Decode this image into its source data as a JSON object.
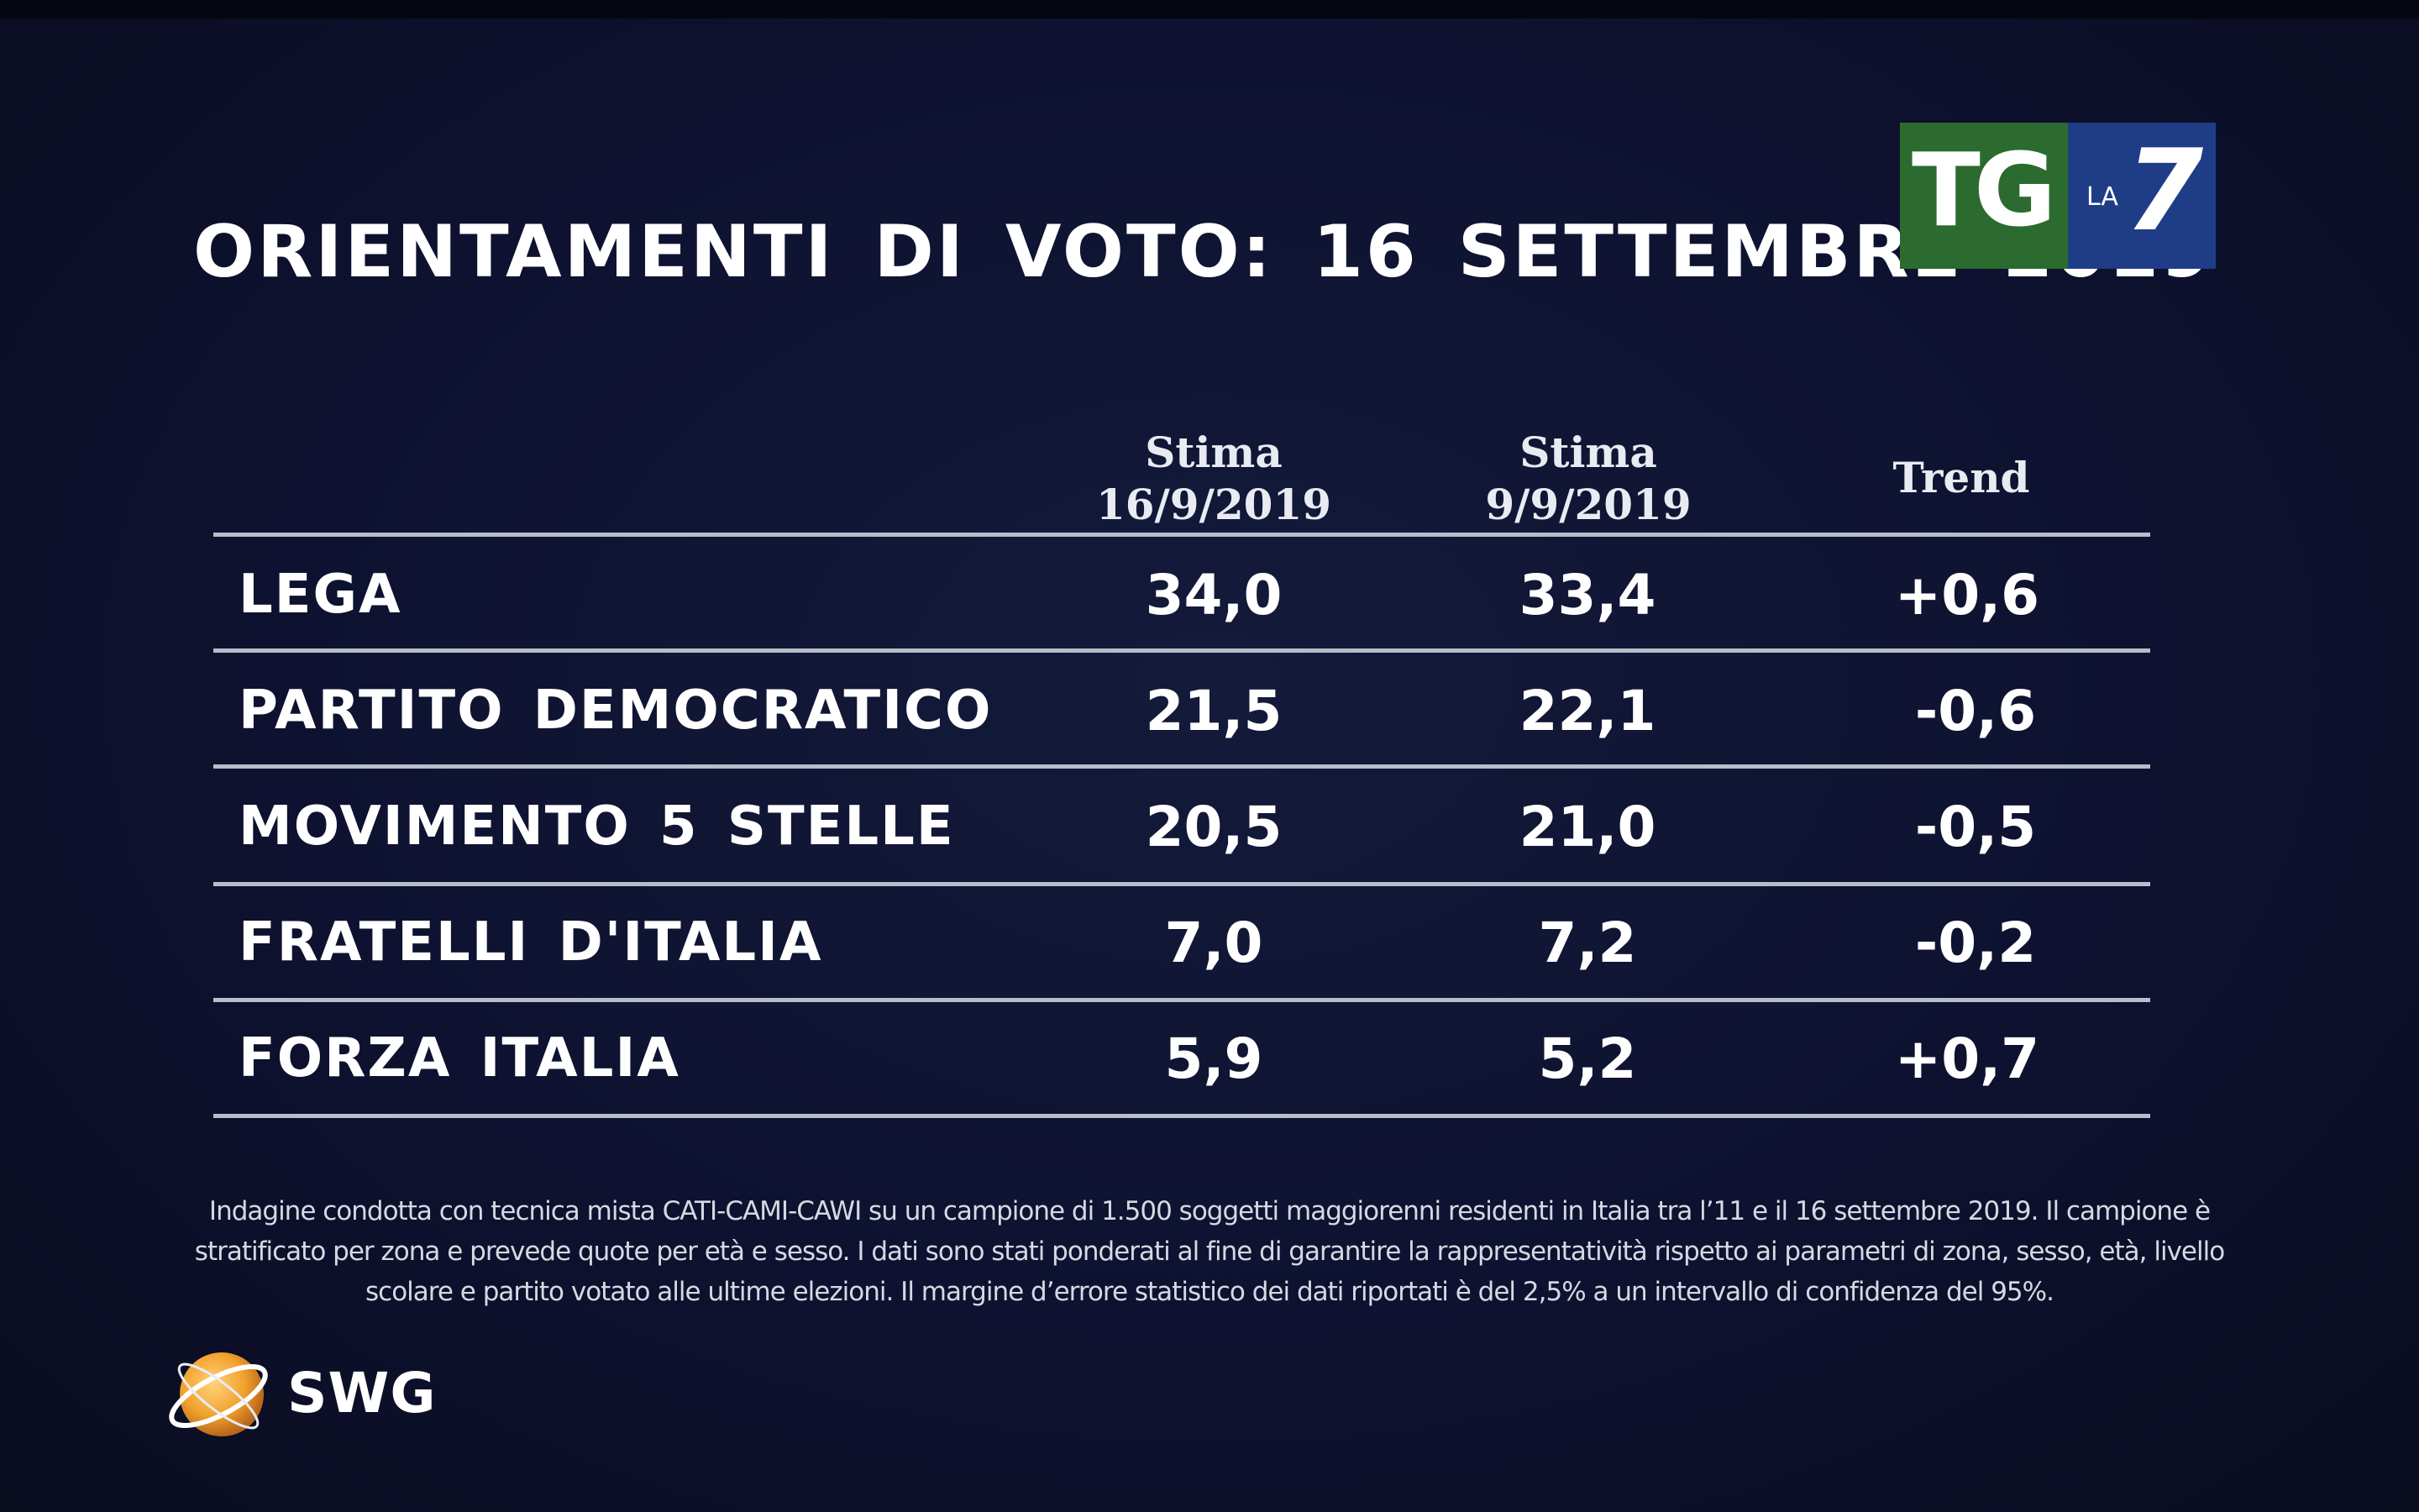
{
  "title": "ORIENTAMENTI DI VOTO: 16 SETTEMBRE 2019",
  "logo": {
    "tg": "TG",
    "la": "LA",
    "seven": "7",
    "green": "#2c6b2f",
    "blue": "#1f3d86"
  },
  "chart_data": {
    "type": "table",
    "title": "ORIENTAMENTI DI VOTO: 16 SETTEMBRE 2019",
    "columns": [
      {
        "line1": "Stima",
        "line2": "16/9/2019"
      },
      {
        "line1": "Stima",
        "line2": "9/9/2019"
      },
      {
        "line1": "Trend",
        "line2": ""
      }
    ],
    "rows": [
      {
        "party": "LEGA",
        "current": "34,0",
        "previous": "33,4",
        "trend": "+0,6"
      },
      {
        "party": "PARTITO DEMOCRATICO",
        "current": "21,5",
        "previous": "22,1",
        "trend": "-0,6"
      },
      {
        "party": "MOVIMENTO 5 STELLE",
        "current": "20,5",
        "previous": "21,0",
        "trend": "-0,5"
      },
      {
        "party": "FRATELLI D'ITALIA",
        "current": "7,0",
        "previous": "7,2",
        "trend": "-0,2"
      },
      {
        "party": "FORZA ITALIA",
        "current": "5,9",
        "previous": "5,2",
        "trend": "+0,7"
      }
    ]
  },
  "footnote": {
    "line1": "Indagine condotta con tecnica mista CATI-CAMI-CAWI su un campione di 1.500 soggetti maggiorenni residenti in Italia tra l’11 e il 16 settembre 2019. Il campione è",
    "line2": "stratificato per zona e prevede quote per età e sesso. I dati sono stati ponderati al fine di garantire la rappresentatività rispetto ai parametri di zona, sesso, età, livello",
    "line3": "scolare e partito votato alle ultime elezioni. Il margine d’errore statistico dei dati riportati è del 2,5% a un intervallo di confidenza del 95%."
  },
  "swg": {
    "label": "SWG",
    "ball_color": "#f2a22e"
  }
}
